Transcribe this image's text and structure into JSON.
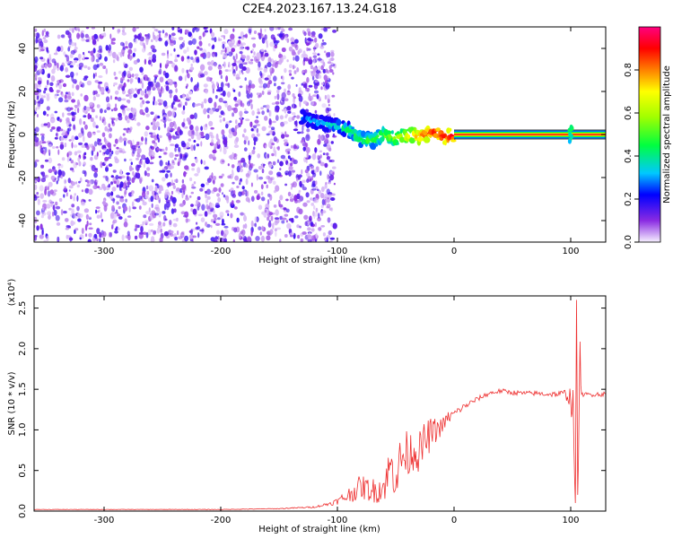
{
  "figure_title": "C2E4.2023.167.13.24.G18",
  "colors": {
    "snr_line": "#ee3030",
    "axis": "#000000",
    "colorbar_stops": [
      "#f6f0ff",
      "#8a2be2",
      "#0000ff",
      "#00c8ff",
      "#00ff40",
      "#a0ff00",
      "#ffff00",
      "#ff8000",
      "#ff0000",
      "#ff0080"
    ]
  },
  "chart_data": [
    {
      "type": "heatmap",
      "title": "",
      "xlabel": "Height of straight line (km)",
      "ylabel": "Frequency (Hz)",
      "xlim": [
        -360,
        130
      ],
      "ylim": [
        -50,
        50
      ],
      "xticks": [
        -300,
        -200,
        -100,
        0,
        100
      ],
      "yticks": [
        -40,
        -20,
        0,
        20,
        40
      ],
      "colorbar": {
        "label": "Normalized spectral amplitude",
        "range": [
          0.0,
          1.0
        ],
        "ticks": [
          "0.0",
          "0.2",
          "0.4",
          "0.6",
          "0.8"
        ]
      },
      "regions": [
        {
          "description": "diffuse purple noise",
          "x_range": [
            -360,
            -110
          ],
          "y_range": [
            -50,
            50
          ],
          "amplitude": 0.1
        },
        {
          "description": "signal emergence",
          "x_range": [
            -135,
            -40
          ],
          "y_center": 2,
          "amplitude": 0.3
        },
        {
          "description": "flat carrier line",
          "x_range": [
            0,
            130
          ],
          "y": 0,
          "amplitude": 0.9
        }
      ],
      "signal_trace": {
        "x": [
          -130,
          -120,
          -110,
          -100,
          -90,
          -80,
          -70,
          -60,
          -50,
          -45,
          -40,
          -35,
          -30,
          -25,
          -20,
          -15,
          -10,
          -5,
          0,
          20,
          40,
          60,
          80,
          100,
          130
        ],
        "y": [
          8,
          6,
          5,
          4,
          2,
          -2,
          -3,
          0,
          -2,
          -1,
          -1,
          0,
          -1,
          0,
          1,
          1,
          -1,
          -1,
          0,
          0,
          0,
          0,
          0,
          0,
          0
        ],
        "amplitude": [
          0.3,
          0.35,
          0.35,
          0.4,
          0.45,
          0.5,
          0.5,
          0.55,
          0.6,
          0.65,
          0.7,
          0.75,
          0.8,
          0.85,
          0.85,
          0.9,
          0.9,
          0.9,
          0.95,
          0.95,
          0.95,
          0.95,
          0.95,
          0.95,
          0.95
        ]
      }
    },
    {
      "type": "line",
      "title": "",
      "xlabel": "Height of straight line (km)",
      "ylabel": "SNR (10 * v/v)",
      "y_scale_label": "(x10⁴)",
      "xlim": [
        -360,
        130
      ],
      "ylim": [
        0,
        2.65
      ],
      "xticks": [
        -300,
        -200,
        -100,
        0,
        100
      ],
      "yticks": [
        0.0,
        0.5,
        1.0,
        1.5,
        2.0,
        2.5
      ],
      "series": [
        {
          "x": [
            -360,
            -300,
            -200,
            -150,
            -120,
            -110,
            -100,
            -90,
            -80,
            -70,
            -60,
            -55,
            -50,
            -45,
            -40,
            -35,
            -30,
            -25,
            -20,
            -15,
            -10,
            -5,
            0,
            10,
            20,
            30,
            40,
            50,
            60,
            70,
            80,
            90,
            95,
            100,
            102,
            104,
            105,
            106,
            108,
            110,
            120,
            130
          ],
          "y": [
            0.02,
            0.02,
            0.02,
            0.03,
            0.05,
            0.08,
            0.12,
            0.2,
            0.3,
            0.25,
            0.3,
            0.55,
            0.45,
            0.65,
            0.7,
            0.75,
            0.72,
            0.85,
            0.95,
            1.0,
            1.05,
            1.15,
            1.2,
            1.3,
            1.38,
            1.45,
            1.48,
            1.46,
            1.45,
            1.45,
            1.44,
            1.44,
            1.45,
            1.4,
            1.2,
            0.1,
            2.6,
            0.2,
            1.8,
            1.43,
            1.44,
            1.44
          ],
          "noise": [
            0.002,
            0.002,
            0.003,
            0.005,
            0.01,
            0.02,
            0.04,
            0.1,
            0.15,
            0.15,
            0.2,
            0.25,
            0.3,
            0.3,
            0.3,
            0.25,
            0.25,
            0.25,
            0.2,
            0.15,
            0.1,
            0.08,
            0.05,
            0.04,
            0.03,
            0.03,
            0.03,
            0.03,
            0.03,
            0.03,
            0.03,
            0.04,
            0.05,
            0.15,
            0.3,
            0.0,
            0.0,
            0.0,
            0.3,
            0.03,
            0.03,
            0.03
          ]
        }
      ]
    }
  ]
}
